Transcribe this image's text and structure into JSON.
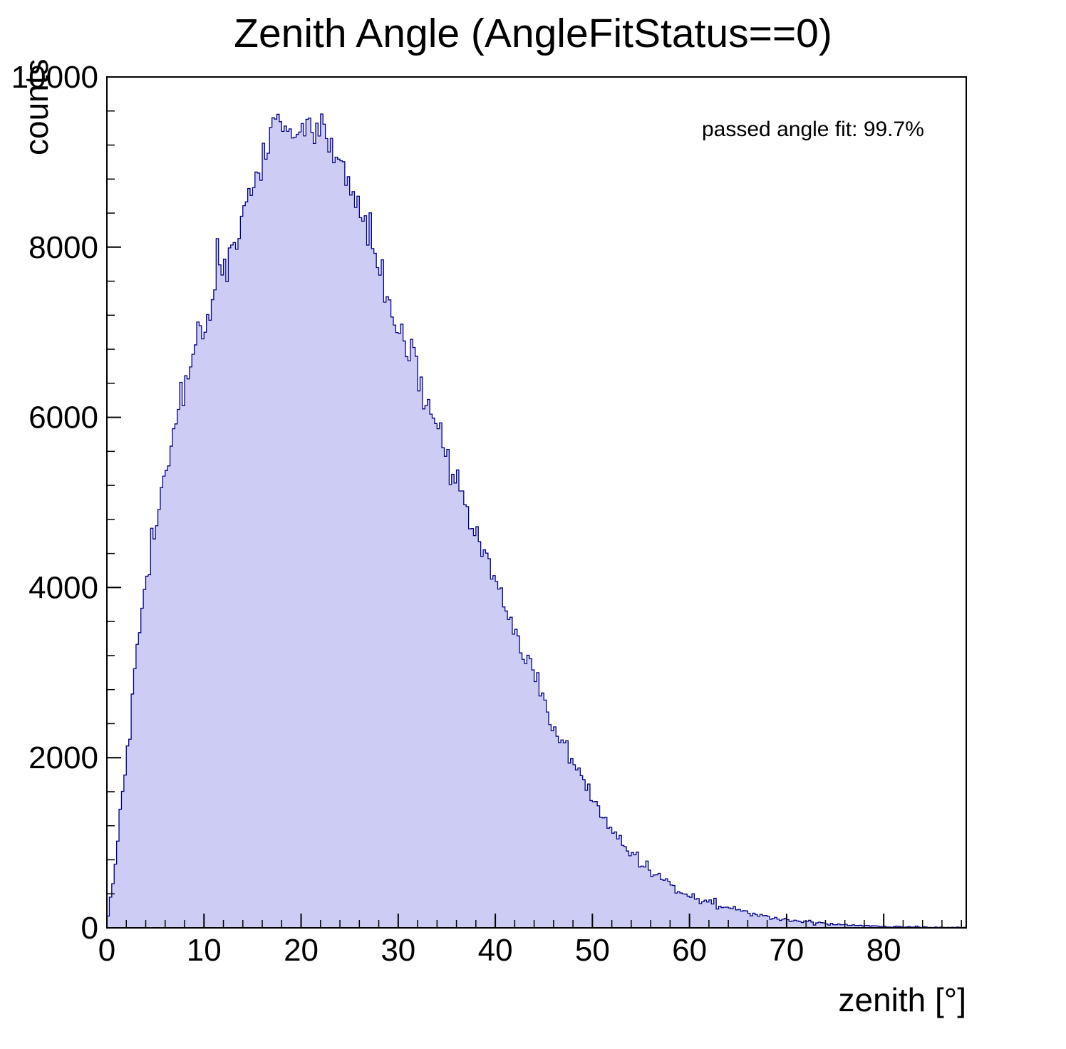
{
  "chart_data": {
    "type": "bar",
    "subtype": "histogram-filled-steps",
    "title": "Zenith Angle (AngleFitStatus==0)",
    "annotation": "passed angle fit: 99.7%",
    "xlabel": "zenith [°]",
    "ylabel": "counts",
    "xlim": [
      0,
      88.5
    ],
    "ylim": [
      0,
      10000
    ],
    "x_ticks": [
      0,
      10,
      20,
      30,
      40,
      50,
      60,
      70,
      80
    ],
    "y_ticks": [
      0,
      2000,
      4000,
      6000,
      8000,
      10000
    ],
    "x_minor_step": 2,
    "y_minor_step": 400,
    "grid": false,
    "legend_position": "none",
    "fill_color": "#ccccf4",
    "line_color": "#000088",
    "frame_color": "#000000",
    "bin_width_deg": 0.25,
    "x": [
      0,
      1,
      2,
      3,
      4,
      5,
      6,
      7,
      8,
      9,
      10,
      11,
      12,
      13,
      14,
      15,
      16,
      17,
      18,
      19,
      20,
      21,
      22,
      23,
      24,
      25,
      26,
      27,
      28,
      29,
      30,
      31,
      32,
      33,
      34,
      35,
      36,
      37,
      38,
      39,
      40,
      41,
      42,
      43,
      44,
      45,
      46,
      47,
      48,
      49,
      50,
      51,
      52,
      53,
      54,
      55,
      56,
      57,
      58,
      59,
      60,
      61,
      62,
      63,
      64,
      65,
      66,
      67,
      68,
      69,
      70,
      71,
      72,
      73,
      74,
      75,
      76,
      77,
      78,
      79,
      80,
      81,
      82,
      83,
      84,
      85,
      86,
      87,
      88
    ],
    "counts": [
      50,
      900,
      2050,
      3100,
      4000,
      4750,
      5350,
      5900,
      6350,
      6750,
      7100,
      7450,
      7750,
      8050,
      8350,
      8700,
      8950,
      9250,
      9550,
      9400,
      9450,
      9300,
      9400,
      9300,
      8950,
      8700,
      8450,
      8150,
      7750,
      7400,
      7100,
      6800,
      6500,
      6150,
      5850,
      5550,
      5250,
      4950,
      4650,
      4350,
      4050,
      3750,
      3450,
      3200,
      2950,
      2650,
      2400,
      2150,
      1950,
      1750,
      1500,
      1300,
      1150,
      1000,
      880,
      770,
      680,
      590,
      510,
      450,
      400,
      350,
      310,
      270,
      235,
      205,
      175,
      150,
      130,
      110,
      95,
      82,
      70,
      60,
      52,
      45,
      38,
      33,
      28,
      24,
      20,
      17,
      14,
      12,
      10,
      8,
      7,
      5,
      4
    ],
    "spike_bins": [
      {
        "x": 11.25,
        "count": 8100
      }
    ]
  }
}
